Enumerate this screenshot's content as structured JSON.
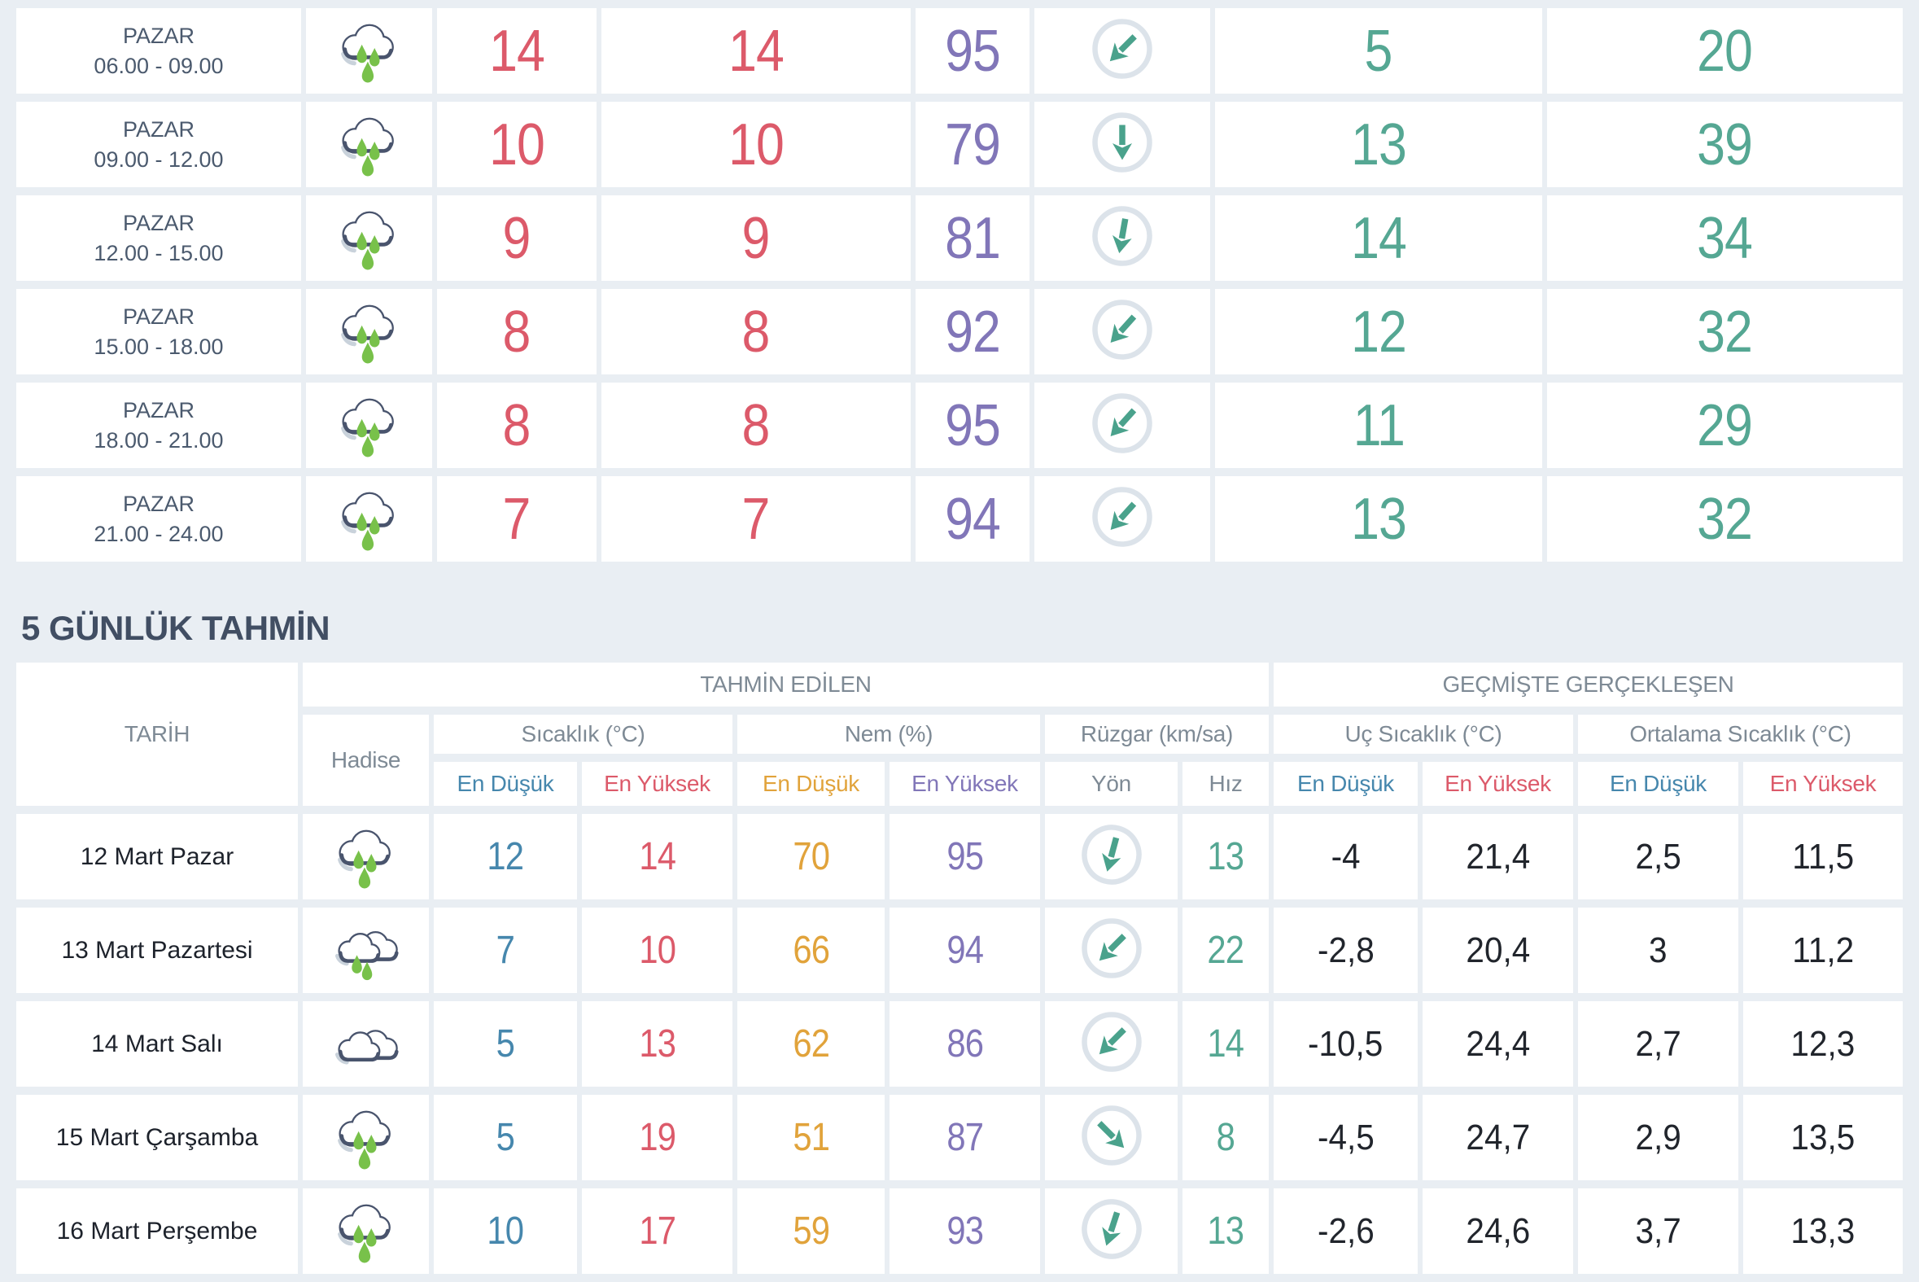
{
  "title": {
    "section": "5 GÜNLÜK TAHMİN"
  },
  "colors": {
    "background": "#e9eef3",
    "cell": "#ffffff",
    "temp_high_red": "#dc5a6a",
    "temp_low_blue": "#4687ad",
    "humidity_purple": "#8176b8",
    "humidity_low_orange": "#e1a33b",
    "wind_teal": "#55a793",
    "header_gray": "#7e8a95",
    "title_navy": "#414e63",
    "cloud_outline": "#49546d",
    "rain_green": "#78c14a",
    "wind_ring": "#dce3ea"
  },
  "hourly": {
    "rows": [
      {
        "day": "PAZAR",
        "time": "06.00 - 09.00",
        "icon": "rainy",
        "temp": "14",
        "feels_like": "14",
        "humidity": "95",
        "wind_dir_deg": 45,
        "wind_speed": "5",
        "wind_gust": "20"
      },
      {
        "day": "PAZAR",
        "time": "09.00 - 12.00",
        "icon": "rainy",
        "temp": "10",
        "feels_like": "10",
        "humidity": "79",
        "wind_dir_deg": 0,
        "wind_speed": "13",
        "wind_gust": "39"
      },
      {
        "day": "PAZAR",
        "time": "12.00 - 15.00",
        "icon": "rainy",
        "temp": "9",
        "feels_like": "9",
        "humidity": "81",
        "wind_dir_deg": 10,
        "wind_speed": "14",
        "wind_gust": "34"
      },
      {
        "day": "PAZAR",
        "time": "15.00 - 18.00",
        "icon": "rainy",
        "temp": "8",
        "feels_like": "8",
        "humidity": "92",
        "wind_dir_deg": 42,
        "wind_speed": "12",
        "wind_gust": "32"
      },
      {
        "day": "PAZAR",
        "time": "18.00 - 21.00",
        "icon": "rainy",
        "temp": "8",
        "feels_like": "8",
        "humidity": "95",
        "wind_dir_deg": 42,
        "wind_speed": "11",
        "wind_gust": "29"
      },
      {
        "day": "PAZAR",
        "time": "21.00 - 24.00",
        "icon": "rainy",
        "temp": "7",
        "feels_like": "7",
        "humidity": "94",
        "wind_dir_deg": 42,
        "wind_speed": "13",
        "wind_gust": "32"
      }
    ]
  },
  "daily": {
    "header": {
      "tarih": "TARİH",
      "hadise": "Hadise",
      "tahmin_edilen": "TAHMİN EDİLEN",
      "gecmiste": "GEÇMİŞTE GERÇEKLEŞEN",
      "sicaklik": "Sıcaklık (°C)",
      "nem": "Nem (%)",
      "ruzgar": "Rüzgar (km/sa)",
      "uc_sicaklik": "Uç Sıcaklık (°C)",
      "ortalama_sicaklik": "Ortalama Sıcaklık (°C)",
      "en_dusuk": "En Düşük",
      "en_yuksek": "En Yüksek",
      "yon": "Yön",
      "hiz": "Hız"
    },
    "rows": [
      {
        "date": "12 Mart Pazar",
        "icon": "rainy",
        "temp_min": "12",
        "temp_max": "14",
        "hum_min": "70",
        "hum_max": "95",
        "wind_dir_deg": 15,
        "wind_speed": "13",
        "ext_min": "-4",
        "ext_max": "21,4",
        "avg_min": "2,5",
        "avg_max": "11,5"
      },
      {
        "date": "13 Mart Pazartesi",
        "icon": "rainy-double",
        "temp_min": "7",
        "temp_max": "10",
        "hum_min": "66",
        "hum_max": "94",
        "wind_dir_deg": 45,
        "wind_speed": "22",
        "ext_min": "-2,8",
        "ext_max": "20,4",
        "avg_min": "3",
        "avg_max": "11,2"
      },
      {
        "date": "14 Mart Salı",
        "icon": "cloudy-double",
        "temp_min": "5",
        "temp_max": "13",
        "hum_min": "62",
        "hum_max": "86",
        "wind_dir_deg": 45,
        "wind_speed": "14",
        "ext_min": "-10,5",
        "ext_max": "24,4",
        "avg_min": "2,7",
        "avg_max": "12,3"
      },
      {
        "date": "15 Mart Çarşamba",
        "icon": "rainy",
        "temp_min": "5",
        "temp_max": "19",
        "hum_min": "51",
        "hum_max": "87",
        "wind_dir_deg": -45,
        "wind_speed": "8",
        "ext_min": "-4,5",
        "ext_max": "24,7",
        "avg_min": "2,9",
        "avg_max": "13,5"
      },
      {
        "date": "16 Mart Perşembe",
        "icon": "rainy",
        "temp_min": "10",
        "temp_max": "17",
        "hum_min": "59",
        "hum_max": "93",
        "wind_dir_deg": 18,
        "wind_speed": "13",
        "ext_min": "-2,6",
        "ext_max": "24,6",
        "avg_min": "3,7",
        "avg_max": "13,3"
      }
    ]
  }
}
